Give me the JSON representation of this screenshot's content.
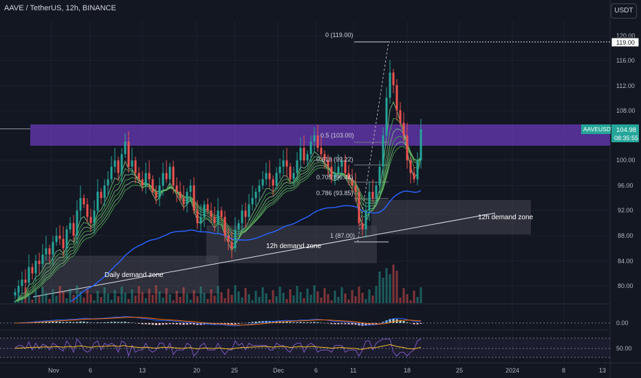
{
  "header": {
    "title": "AAVE / TetherUS, 12h, BINANCE",
    "currency_button": "USDT"
  },
  "price_axis": {
    "ticks": [
      "120.00",
      "116.00",
      "112.00",
      "108.00",
      "100.00",
      "96.00",
      "92.00",
      "88.00",
      "84.00",
      "80.00"
    ],
    "high_marker": "119.00",
    "symbol_label": "AAVEUSDT",
    "last_price": "104.98",
    "countdown": "08:35:55"
  },
  "indicator_axes": {
    "macd_tick": "0.00",
    "rsi_tick": "50.00"
  },
  "time_axis": [
    "Nov",
    "6",
    "13",
    "20",
    "25",
    "Dec",
    "6",
    "11",
    "18",
    "25",
    "2024",
    "8",
    "13"
  ],
  "fib_levels": [
    "0 (119.00)",
    "0.5 (103.00)",
    "0.618 (99.22)",
    "0.705 (96.44)",
    "0.786 (93.85)",
    "1 (87.00)"
  ],
  "annotations": {
    "daily_zone": "Daily demand zone",
    "zone_12h_a": "12h demand zone",
    "zone_12h_b": "12h demand zone"
  },
  "colors": {
    "bg": "#131722",
    "up": "#26a69a",
    "down": "#ef5350",
    "supply_zone": "#673ab7",
    "price_label": "#26a69a",
    "ma_slow": "#2962ff"
  },
  "chart_data": {
    "type": "candlestick",
    "symbol": "AAVE / TetherUS",
    "interval": "12h",
    "exchange": "BINANCE",
    "ylim": [
      78,
      121
    ],
    "last_price": 104.98,
    "high_price": 119.0,
    "fib_retracement": [
      {
        "level": 0,
        "price": 119.0
      },
      {
        "level": 0.5,
        "price": 103.0
      },
      {
        "level": 0.618,
        "price": 99.22
      },
      {
        "level": 0.705,
        "price": 96.44
      },
      {
        "level": 0.786,
        "price": 93.85
      },
      {
        "level": 1,
        "price": 87.0
      }
    ],
    "zones": [
      {
        "name": "supply",
        "price_low": 102.5,
        "price_high": 105.8
      },
      {
        "name": "Daily demand zone",
        "price_low": 79.5,
        "price_high": 85.0
      },
      {
        "name": "12h demand zone",
        "price_low": 83.5,
        "price_high": 89.5
      },
      {
        "name": "12h demand zone",
        "price_low": 88.2,
        "price_high": 93.8
      }
    ],
    "close": [
      79,
      80,
      81,
      80.5,
      83,
      82,
      84,
      83.5,
      85,
      86,
      85,
      87,
      88,
      87.5,
      86,
      89,
      90,
      88,
      92,
      94,
      93,
      91,
      90,
      92,
      95,
      94,
      96,
      97,
      99,
      100,
      98,
      101,
      103,
      99,
      100,
      98,
      97,
      96,
      98,
      97,
      95,
      94,
      96,
      98,
      97,
      99,
      96,
      95,
      94,
      93,
      95,
      96,
      92,
      90,
      91,
      93,
      92,
      91,
      90,
      92,
      91,
      88,
      87,
      86,
      89,
      90,
      92,
      91,
      93,
      94,
      95,
      96,
      97,
      98,
      97,
      96,
      98,
      99,
      100,
      99,
      97,
      98,
      100,
      102,
      100,
      101,
      103,
      104,
      102,
      101,
      100,
      99,
      97,
      98,
      99,
      100,
      98,
      97,
      96,
      95,
      90,
      89,
      92,
      95,
      94,
      96,
      99,
      104,
      110,
      114,
      112,
      108,
      106,
      104,
      100,
      98,
      97,
      100,
      104.98
    ]
  }
}
